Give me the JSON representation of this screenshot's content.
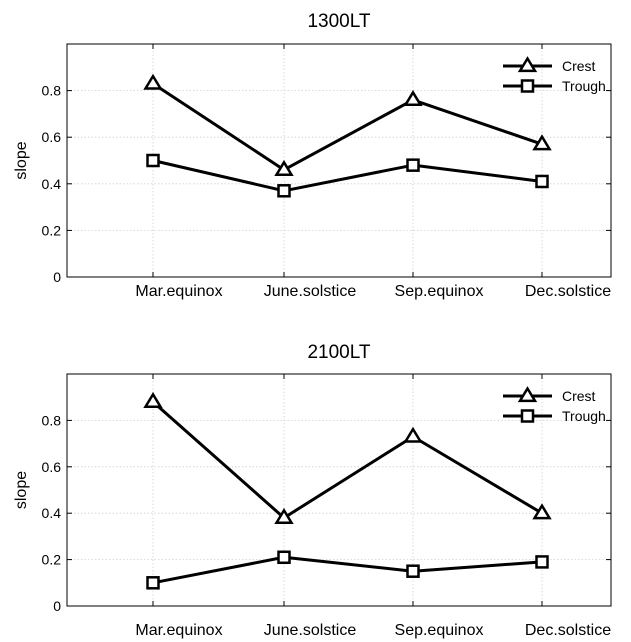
{
  "chart_data": [
    {
      "type": "line",
      "title": "1300LT",
      "xlabel": "",
      "ylabel": "slope",
      "categories": [
        "Mar.equinox",
        "June.solstice",
        "Sep.equinox",
        "Dec.solstice"
      ],
      "ylim": [
        0,
        1.0
      ],
      "yticks": [
        0,
        0.2,
        0.4,
        0.6,
        0.8
      ],
      "ytick_labels": [
        "0",
        "0.2",
        "0.4",
        "0.6",
        "0.8"
      ],
      "grid": true,
      "legend": "top-right",
      "series": [
        {
          "name": "Crest",
          "marker": "triangle",
          "values": [
            0.83,
            0.46,
            0.76,
            0.57
          ]
        },
        {
          "name": "Trough",
          "marker": "square",
          "values": [
            0.5,
            0.37,
            0.48,
            0.41
          ]
        }
      ]
    },
    {
      "type": "line",
      "title": "2100LT",
      "xlabel": "",
      "ylabel": "slope",
      "categories": [
        "Mar.equinox",
        "June.solstice",
        "Sep.equinox",
        "Dec.solstice"
      ],
      "ylim": [
        0,
        1.0
      ],
      "yticks": [
        0,
        0.2,
        0.4,
        0.6,
        0.8
      ],
      "ytick_labels": [
        "0",
        "0.2",
        "0.4",
        "0.6",
        "0.8"
      ],
      "grid": true,
      "legend": "top-right",
      "series": [
        {
          "name": "Crest",
          "marker": "triangle",
          "values": [
            0.88,
            0.38,
            0.73,
            0.4
          ]
        },
        {
          "name": "Trough",
          "marker": "square",
          "values": [
            0.1,
            0.21,
            0.15,
            0.19
          ]
        }
      ]
    }
  ]
}
